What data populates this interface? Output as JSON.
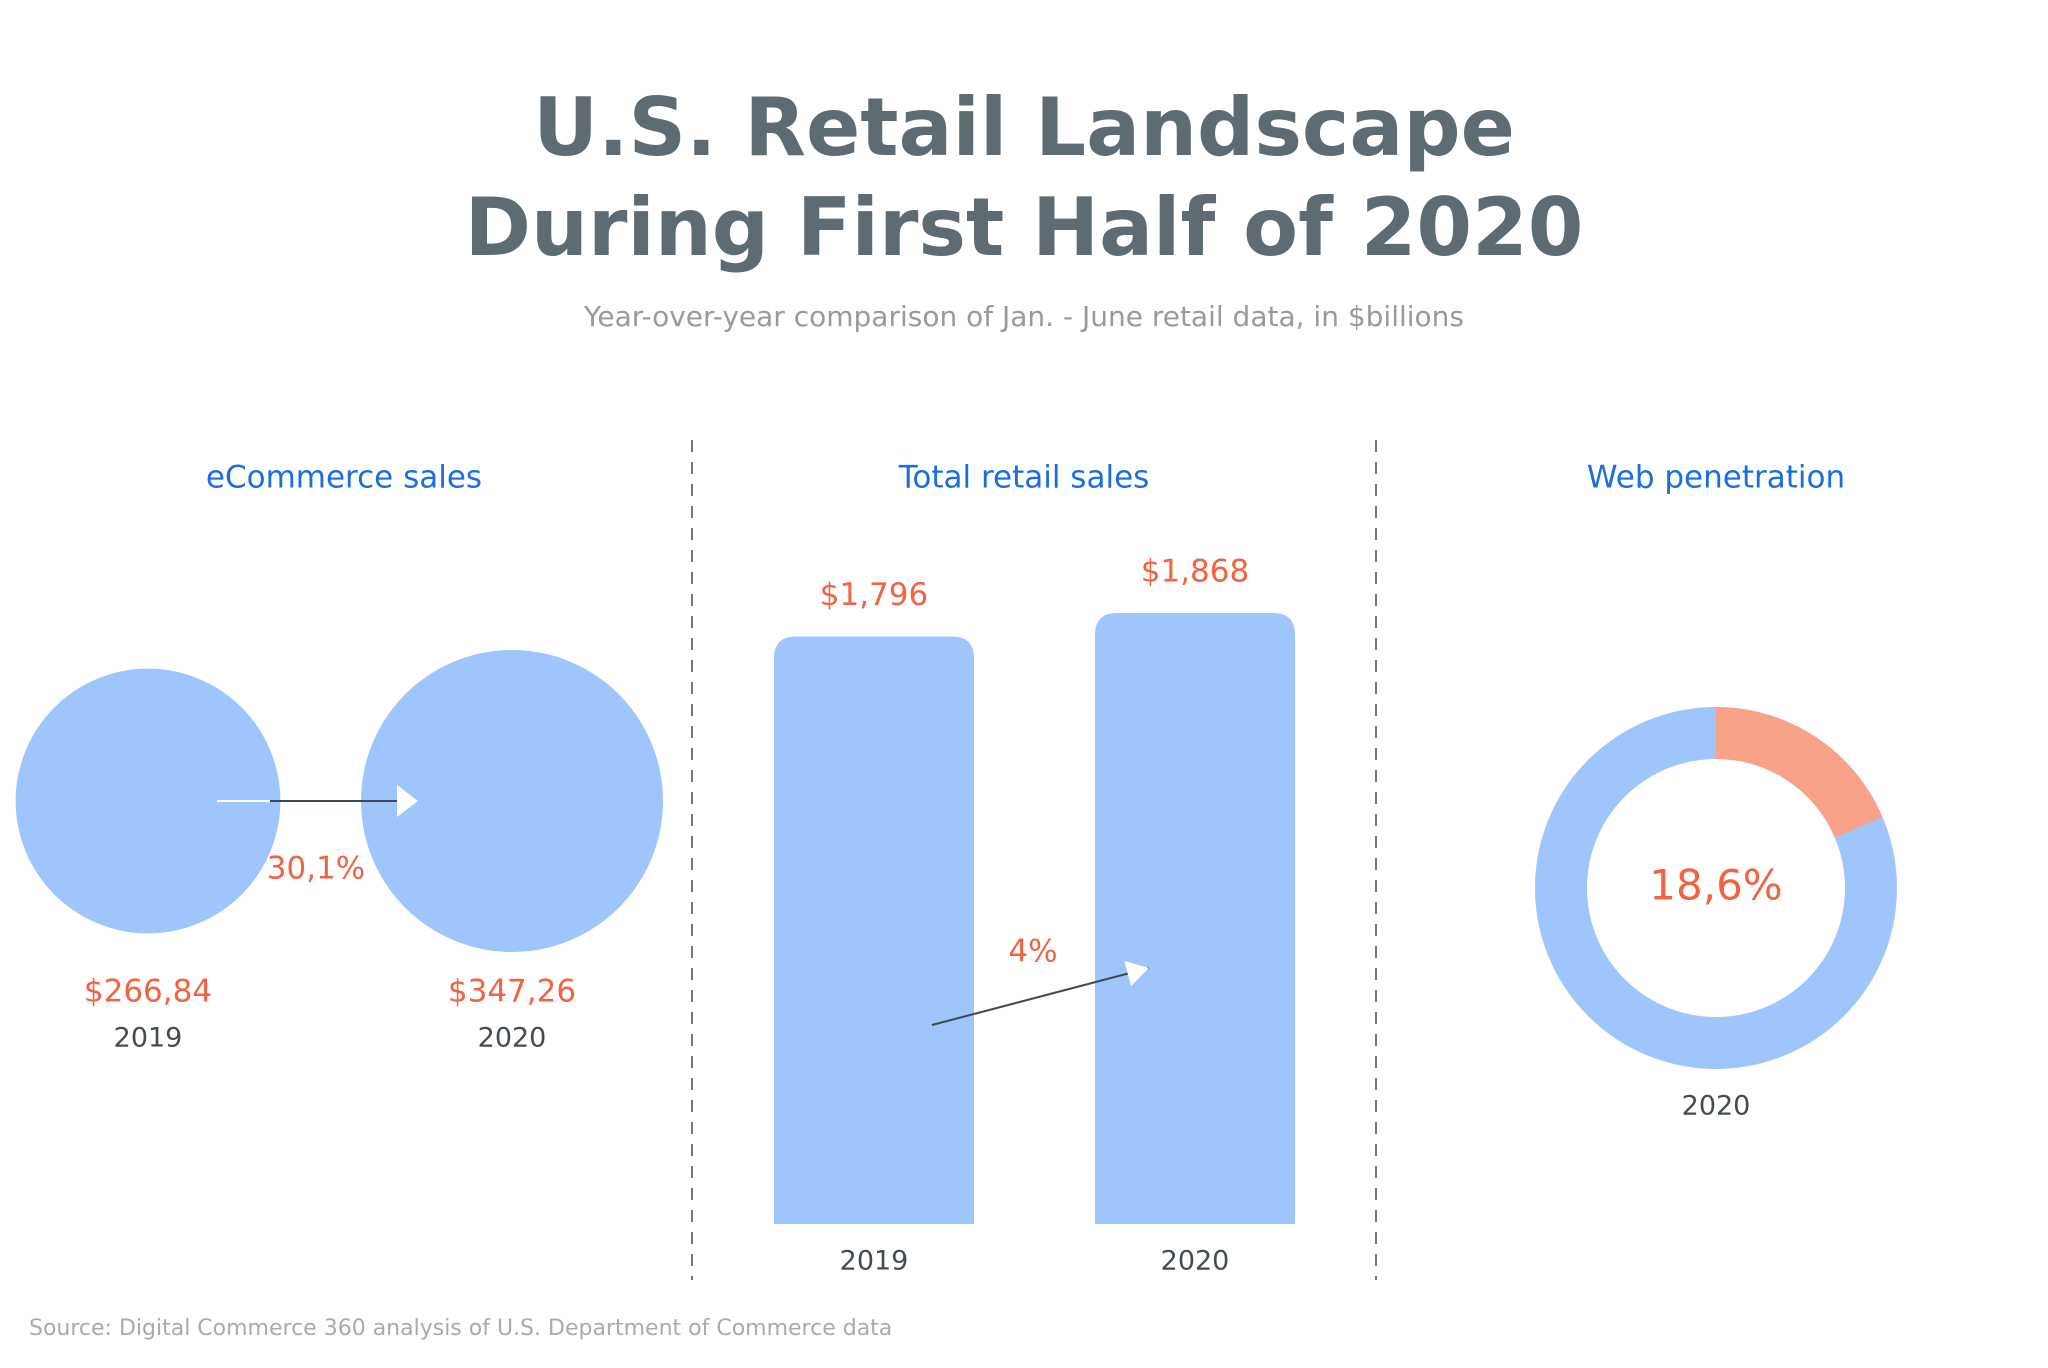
{
  "header": {
    "title": "U.S. Retail Landscape During First Half of 2020",
    "subtitle": "Year-over-year comparison of Jan. - June retail data, in $billions"
  },
  "source": "Source: Digital Commerce 360 analysis of U.S. Department of Commerce data",
  "chart_data": [
    {
      "type": "bubble",
      "title": "eCommerce sales",
      "categories": [
        "2019",
        "2020"
      ],
      "values": [
        266.84,
        347.26
      ],
      "value_labels": [
        "$266,84",
        "$347,26"
      ],
      "annotation": "30,1%",
      "color": "#9ec5fc"
    },
    {
      "type": "bar",
      "title": "Total retail sales",
      "categories": [
        "2019",
        "2020"
      ],
      "values": [
        1796,
        1868
      ],
      "value_labels": [
        "$1,796",
        "$1,868"
      ],
      "annotation": "4%",
      "color": "#9ec5fc"
    },
    {
      "type": "donut",
      "title": "Web penetration",
      "categories": [
        "2020"
      ],
      "values": [
        18.6
      ],
      "value_labels": [
        "18,6%"
      ],
      "color": "#f8a28a",
      "ring_color": "#9ec5fc"
    }
  ]
}
